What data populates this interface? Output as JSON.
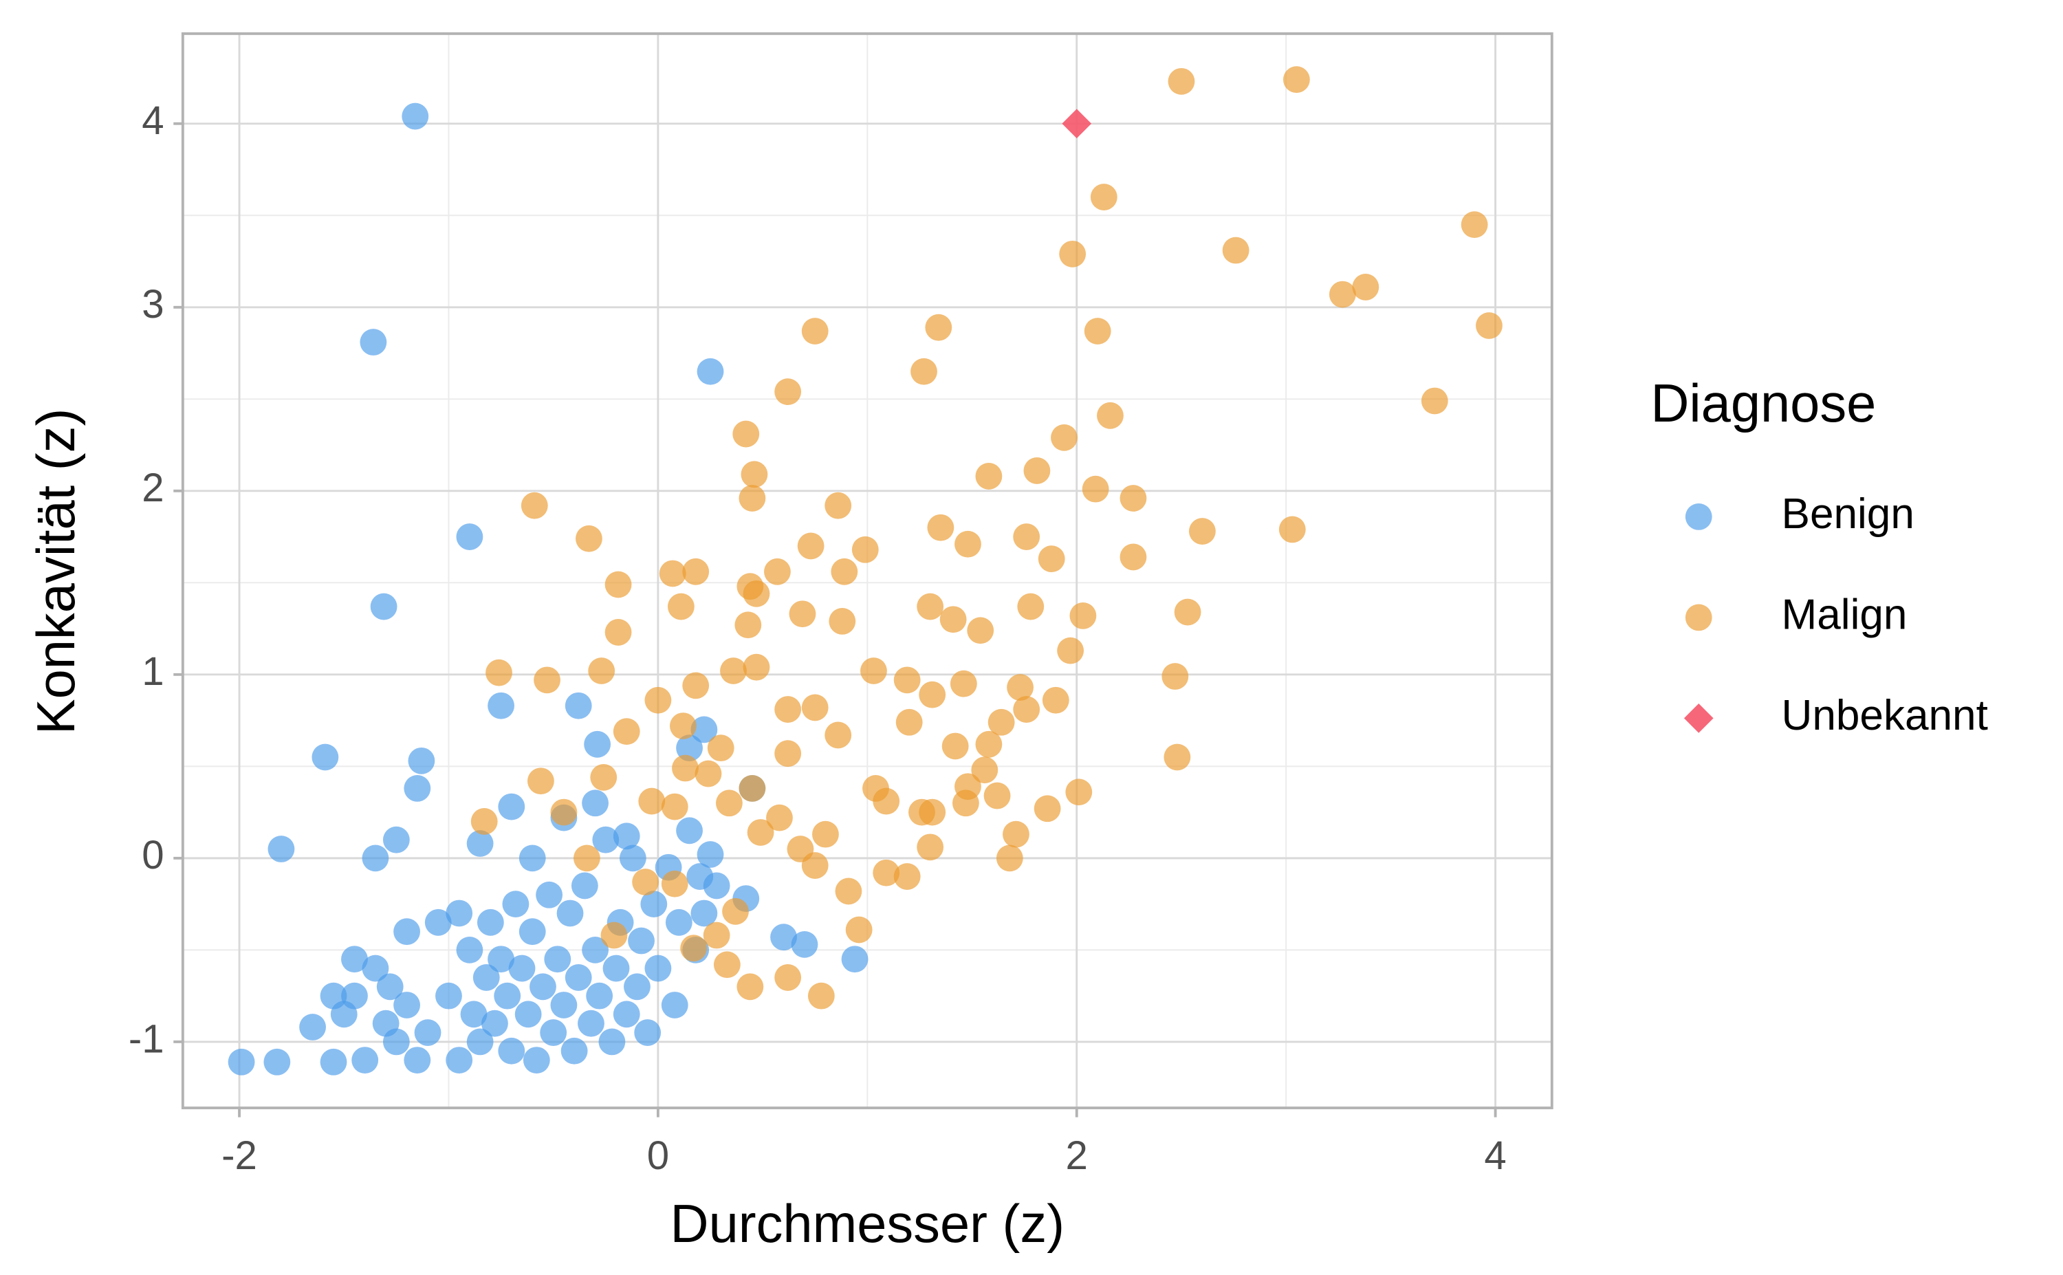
{
  "chart_data": {
    "type": "scatter",
    "x_label": "Durchmesser (z)",
    "y_label": "Konkavität (z)",
    "legend_title": "Diagnose",
    "xlim": [
      -2.27,
      4.27
    ],
    "ylim": [
      -1.36,
      4.49
    ],
    "xticks": [
      -2,
      0,
      2,
      4
    ],
    "yticks": [
      -1,
      0,
      1,
      2,
      3,
      4
    ],
    "grid": true,
    "legend": "right",
    "series": [
      {
        "name": "Benign",
        "color": "#4a9bea",
        "marker": "circle",
        "x": [
          -1.16,
          -1.36,
          -0.9,
          -1.31,
          0.25,
          -1.59,
          -1.13,
          -1.15,
          -1.8,
          -0.75,
          -0.38,
          -0.29,
          -1.99,
          -1.82,
          0.94,
          -1.55,
          -1.5,
          -1.45,
          -1.4,
          -1.35,
          -1.3,
          -1.28,
          -1.25,
          -1.2,
          -1.15,
          -1.1,
          -1.05,
          -1.0,
          -0.95,
          -0.9,
          -0.88,
          -0.85,
          -0.82,
          -0.8,
          -0.78,
          -0.75,
          -0.72,
          -0.7,
          -0.68,
          -0.65,
          -0.62,
          -0.6,
          -0.58,
          -0.55,
          -0.52,
          -0.5,
          -0.48,
          -0.45,
          -0.42,
          -0.4,
          -0.38,
          -0.35,
          -0.32,
          -0.3,
          -0.28,
          -0.25,
          -0.22,
          -0.2,
          -0.18,
          -0.15,
          -0.12,
          -0.1,
          -0.08,
          -0.05,
          -0.02,
          0.0,
          0.05,
          0.08,
          0.1,
          0.15,
          0.18,
          0.2,
          0.22,
          0.25,
          0.28,
          0.45,
          0.42,
          0.6,
          0.7,
          0.15,
          0.22,
          -0.95,
          -1.2,
          -1.35,
          -1.25,
          -0.7,
          -0.85,
          -0.6,
          -0.45,
          -1.65,
          -1.55,
          -1.45,
          -0.3,
          -0.15
        ],
        "y": [
          4.04,
          2.81,
          1.75,
          1.37,
          2.65,
          0.55,
          0.53,
          0.38,
          0.05,
          0.83,
          0.83,
          0.62,
          -1.11,
          -1.11,
          -0.55,
          -1.11,
          -0.85,
          -0.75,
          -1.1,
          -0.6,
          -0.9,
          -0.7,
          -1.0,
          -0.8,
          -1.1,
          -0.95,
          -0.35,
          -0.75,
          -1.1,
          -0.5,
          -0.85,
          -1.0,
          -0.65,
          -0.35,
          -0.9,
          -0.55,
          -0.75,
          -1.05,
          -0.25,
          -0.6,
          -0.85,
          -0.4,
          -1.1,
          -0.7,
          -0.2,
          -0.95,
          -0.55,
          -0.8,
          -0.3,
          -1.05,
          -0.65,
          -0.15,
          -0.9,
          -0.5,
          -0.75,
          0.1,
          -1.0,
          -0.6,
          -0.35,
          -0.85,
          0.0,
          -0.7,
          -0.45,
          -0.95,
          -0.25,
          -0.6,
          -0.05,
          -0.8,
          -0.35,
          0.15,
          -0.5,
          -0.1,
          -0.3,
          0.02,
          -0.15,
          0.38,
          -0.22,
          -0.43,
          -0.47,
          0.6,
          0.7,
          -0.3,
          -0.4,
          0.0,
          0.1,
          0.28,
          0.08,
          0.0,
          0.22,
          -0.92,
          -0.75,
          -0.55,
          0.3,
          0.12
        ]
      },
      {
        "name": "Malign",
        "color": "#eb9a2c",
        "marker": "circle",
        "x": [
          2.5,
          3.05,
          2.13,
          1.98,
          2.76,
          3.9,
          3.27,
          3.38,
          3.97,
          3.71,
          2.1,
          0.75,
          1.34,
          1.27,
          0.62,
          0.42,
          1.94,
          2.16,
          -0.59,
          0.46,
          0.45,
          0.86,
          1.58,
          1.81,
          2.09,
          2.27,
          2.6,
          3.03,
          -0.33,
          -0.19,
          0.07,
          0.18,
          1.35,
          0.99,
          0.73,
          2.27,
          1.88,
          1.76,
          1.48,
          0.44,
          0.47,
          0.57,
          0.89,
          0.11,
          -0.19,
          -0.76,
          -0.53,
          -0.27,
          0.43,
          0.69,
          0.88,
          1.3,
          1.41,
          1.54,
          1.78,
          2.03,
          2.53,
          2.47,
          2.48,
          2.01,
          1.86,
          1.71,
          1.68,
          1.3,
          1.19,
          1.09,
          0.96,
          0.78,
          0.44,
          0.62,
          0.33,
          0.0,
          0.18,
          0.36,
          0.47,
          0.62,
          0.75,
          0.86,
          1.03,
          1.19,
          1.31,
          1.46,
          1.73,
          1.9,
          1.64,
          1.58,
          1.56,
          1.42,
          1.2,
          1.04,
          1.09,
          1.31,
          1.47,
          1.48,
          0.58,
          0.49,
          0.68,
          0.8,
          0.34,
          0.45,
          0.08,
          -0.03,
          -0.26,
          -0.56,
          -0.83,
          -0.45,
          -0.15,
          0.12,
          0.13,
          0.24,
          0.3,
          0.62,
          -0.21,
          0.17,
          0.28,
          0.37,
          0.08,
          -0.06,
          -0.34,
          0.75,
          0.91,
          1.26,
          1.62,
          1.76,
          1.97
        ],
        "y": [
          4.23,
          4.24,
          3.6,
          3.29,
          3.31,
          3.45,
          3.07,
          3.11,
          2.9,
          2.49,
          2.87,
          2.87,
          2.89,
          2.65,
          2.54,
          2.31,
          2.29,
          2.41,
          1.92,
          2.09,
          1.96,
          1.92,
          2.08,
          2.11,
          2.01,
          1.96,
          1.78,
          1.79,
          1.74,
          1.49,
          1.55,
          1.56,
          1.8,
          1.68,
          1.7,
          1.64,
          1.63,
          1.75,
          1.71,
          1.48,
          1.44,
          1.56,
          1.56,
          1.37,
          1.23,
          1.01,
          0.97,
          1.02,
          1.27,
          1.33,
          1.29,
          1.37,
          1.3,
          1.24,
          1.37,
          1.32,
          1.34,
          0.99,
          0.55,
          0.36,
          0.27,
          0.13,
          0.0,
          0.06,
          -0.1,
          -0.08,
          -0.39,
          -0.75,
          -0.7,
          -0.65,
          -0.58,
          0.86,
          0.94,
          1.02,
          1.04,
          0.81,
          0.82,
          0.67,
          1.02,
          0.97,
          0.89,
          0.95,
          0.93,
          0.86,
          0.74,
          0.62,
          0.48,
          0.61,
          0.74,
          0.38,
          0.31,
          0.25,
          0.3,
          0.39,
          0.22,
          0.14,
          0.05,
          0.13,
          0.3,
          0.38,
          0.28,
          0.31,
          0.44,
          0.42,
          0.2,
          0.25,
          0.69,
          0.72,
          0.49,
          0.46,
          0.6,
          0.57,
          -0.42,
          -0.49,
          -0.42,
          -0.29,
          -0.14,
          -0.13,
          0.0,
          -0.04,
          -0.18,
          0.25,
          0.34,
          0.81,
          1.13
        ]
      },
      {
        "name": "Unbekannt",
        "color": "#f5566a",
        "marker": "diamond",
        "x": [
          2.0
        ],
        "y": [
          4.0
        ]
      }
    ]
  }
}
